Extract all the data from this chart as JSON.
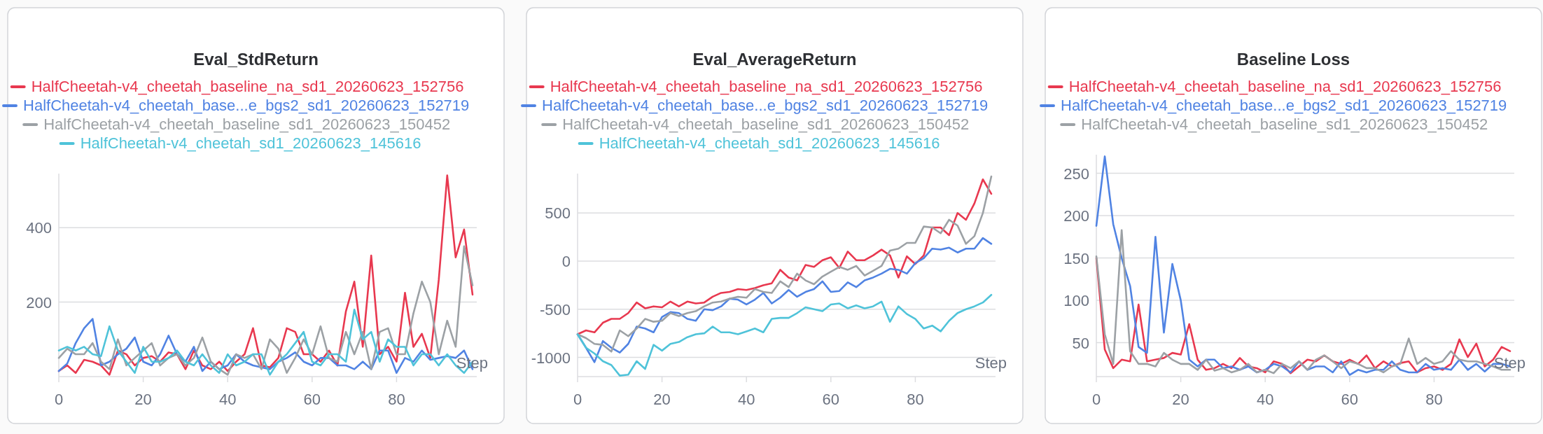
{
  "chart_data": [
    {
      "type": "line",
      "title": "Eval_StdReturn",
      "xlabel": "Step",
      "legend": "top",
      "grid": "y",
      "xlim": [
        0,
        99
      ],
      "xticks": [
        0,
        20,
        40,
        60,
        80
      ],
      "ylim": [
        0,
        545
      ],
      "yticks": [
        200,
        400
      ],
      "x": [
        0,
        2,
        4,
        6,
        8,
        10,
        12,
        14,
        16,
        18,
        20,
        22,
        24,
        26,
        28,
        30,
        32,
        34,
        36,
        38,
        40,
        42,
        44,
        46,
        48,
        50,
        52,
        54,
        56,
        58,
        60,
        62,
        64,
        66,
        68,
        70,
        72,
        74,
        76,
        78,
        80,
        82,
        84,
        86,
        88,
        90,
        92,
        94,
        96,
        98
      ],
      "series": [
        {
          "name": "HalfCheetah-v4_cheetah_baseline_na_sd1_20260623_152756",
          "color": "#e8384f",
          "values": [
            15,
            30,
            10,
            45,
            40,
            30,
            5,
            70,
            60,
            30,
            50,
            55,
            40,
            65,
            60,
            20,
            70,
            30,
            20,
            40,
            15,
            40,
            60,
            130,
            30,
            25,
            50,
            130,
            120,
            60,
            60,
            40,
            70,
            30,
            175,
            255,
            80,
            325,
            60,
            80,
            40,
            225,
            80,
            115,
            50,
            260,
            540,
            320,
            395,
            220
          ]
        },
        {
          "name": "HalfCheetah-v4_cheetah_base...e_bgs2_sd1_20260623_152719",
          "color": "#5083e3",
          "values": [
            15,
            35,
            90,
            130,
            155,
            30,
            40,
            60,
            75,
            105,
            40,
            30,
            60,
            110,
            60,
            40,
            80,
            15,
            40,
            20,
            30,
            60,
            40,
            30,
            25,
            20,
            40,
            50,
            65,
            40,
            30,
            50,
            50,
            30,
            30,
            20,
            40,
            20,
            70,
            70,
            10,
            50,
            40,
            70,
            45,
            50,
            55,
            50,
            70,
            20
          ]
        },
        {
          "name": "HalfCheetah-v4_cheetah_baseline_sd1_20260623_150452",
          "color": "#9ca1a5",
          "values": [
            50,
            75,
            60,
            60,
            90,
            40,
            20,
            100,
            30,
            50,
            70,
            90,
            30,
            50,
            60,
            30,
            50,
            105,
            40,
            20,
            5,
            60,
            50,
            60,
            20,
            100,
            75,
            10,
            50,
            100,
            60,
            135,
            50,
            40,
            120,
            60,
            120,
            20,
            120,
            130,
            60,
            60,
            170,
            255,
            200,
            60,
            150,
            80,
            350,
            245
          ]
        },
        {
          "name": "HalfCheetah-v4_cheetah_sd1_20260623_145616",
          "color": "#4fc3d9",
          "values": [
            70,
            80,
            70,
            80,
            60,
            55,
            135,
            70,
            40,
            10,
            80,
            40,
            40,
            50,
            70,
            40,
            30,
            60,
            30,
            10,
            60,
            30,
            40,
            60,
            60,
            5,
            40,
            60,
            90,
            120,
            40,
            30,
            60,
            60,
            40,
            180,
            100,
            120,
            40,
            100,
            80,
            80,
            30,
            60,
            60,
            30,
            60,
            30,
            10,
            40
          ]
        }
      ]
    },
    {
      "type": "line",
      "title": "Eval_AverageReturn",
      "xlabel": "Step",
      "legend": "top",
      "grid": "y",
      "xlim": [
        0,
        99
      ],
      "xticks": [
        0,
        20,
        40,
        60,
        80
      ],
      "ylim": [
        -1200,
        910
      ],
      "yticks": [
        -1000,
        -500,
        0,
        500
      ],
      "x": [
        0,
        2,
        4,
        6,
        8,
        10,
        12,
        14,
        16,
        18,
        20,
        22,
        24,
        26,
        28,
        30,
        32,
        34,
        36,
        38,
        40,
        42,
        44,
        46,
        48,
        50,
        52,
        54,
        56,
        58,
        60,
        62,
        64,
        66,
        68,
        70,
        72,
        74,
        76,
        78,
        80,
        82,
        84,
        86,
        88,
        90,
        92,
        94,
        96,
        98
      ],
      "series": [
        {
          "name": "HalfCheetah-v4_cheetah_baseline_na_sd1_20260623_152756",
          "color": "#e8384f",
          "values": [
            -760,
            -720,
            -740,
            -640,
            -600,
            -600,
            -540,
            -430,
            -490,
            -470,
            -480,
            -420,
            -470,
            -420,
            -440,
            -430,
            -370,
            -330,
            -320,
            -290,
            -300,
            -280,
            -250,
            -230,
            -90,
            -170,
            -200,
            -40,
            -60,
            10,
            40,
            -70,
            100,
            10,
            10,
            60,
            120,
            60,
            -170,
            50,
            -30,
            60,
            350,
            350,
            270,
            500,
            430,
            600,
            850,
            700
          ]
        },
        {
          "name": "HalfCheetah-v4_cheetah_base...e_bgs2_sd1_20260623_152719",
          "color": "#5083e3",
          "values": [
            -760,
            -900,
            -1050,
            -830,
            -900,
            -950,
            -860,
            -680,
            -700,
            -740,
            -580,
            -530,
            -540,
            -600,
            -620,
            -500,
            -510,
            -470,
            -390,
            -400,
            -450,
            -400,
            -330,
            -440,
            -380,
            -300,
            -370,
            -320,
            -290,
            -210,
            -320,
            -310,
            -220,
            -270,
            -200,
            -170,
            -130,
            -80,
            -90,
            -130,
            -20,
            30,
            130,
            120,
            140,
            90,
            130,
            130,
            240,
            180
          ]
        },
        {
          "name": "HalfCheetah-v4_cheetah_baseline_sd1_20260623_150452",
          "color": "#9ca1a5",
          "values": [
            -760,
            -800,
            -860,
            -870,
            -940,
            -720,
            -780,
            -700,
            -600,
            -630,
            -620,
            -540,
            -570,
            -540,
            -520,
            -470,
            -430,
            -420,
            -390,
            -370,
            -380,
            -290,
            -320,
            -330,
            -210,
            -270,
            -130,
            -200,
            -240,
            -160,
            -110,
            -60,
            -90,
            -50,
            -150,
            -100,
            -50,
            110,
            130,
            190,
            190,
            360,
            350,
            290,
            430,
            370,
            180,
            260,
            500,
            880
          ]
        },
        {
          "name": "HalfCheetah-v4_cheetah_sd1_20260623_145616",
          "color": "#4fc3d9",
          "values": [
            -760,
            -900,
            -960,
            -1040,
            -1080,
            -1190,
            -1180,
            -1040,
            -1120,
            -870,
            -930,
            -860,
            -840,
            -790,
            -760,
            -750,
            -680,
            -740,
            -740,
            -760,
            -730,
            -700,
            -740,
            -600,
            -590,
            -590,
            -540,
            -480,
            -500,
            -520,
            -450,
            -440,
            -490,
            -460,
            -490,
            -470,
            -420,
            -630,
            -470,
            -550,
            -600,
            -700,
            -670,
            -730,
            -620,
            -540,
            -500,
            -470,
            -430,
            -350
          ]
        }
      ]
    },
    {
      "type": "line",
      "title": "Baseline Loss",
      "xlabel": "Step",
      "legend": "top",
      "grid": "y",
      "xlim": [
        0,
        99
      ],
      "xticks": [
        0,
        20,
        40,
        60,
        80
      ],
      "ylim": [
        10,
        272
      ],
      "yticks": [
        50,
        100,
        150,
        200,
        250
      ],
      "x": [
        0,
        2,
        4,
        6,
        8,
        10,
        12,
        14,
        16,
        18,
        20,
        22,
        24,
        26,
        28,
        30,
        32,
        34,
        36,
        38,
        40,
        42,
        44,
        46,
        48,
        50,
        52,
        54,
        56,
        58,
        60,
        62,
        64,
        66,
        68,
        70,
        72,
        74,
        76,
        78,
        80,
        82,
        84,
        86,
        88,
        90,
        92,
        94,
        96,
        98
      ],
      "series": [
        {
          "name": "HalfCheetah-v4_cheetah_baseline_na_sd1_20260623_152756",
          "color": "#e8384f",
          "values": [
            150,
            42,
            20,
            30,
            28,
            95,
            28,
            30,
            32,
            38,
            36,
            72,
            30,
            18,
            20,
            25,
            20,
            32,
            22,
            20,
            15,
            28,
            25,
            14,
            22,
            30,
            28,
            35,
            28,
            25,
            30,
            25,
            35,
            20,
            28,
            22,
            26,
            28,
            15,
            20,
            22,
            18,
            25,
            54,
            33,
            49,
            22,
            30,
            45,
            40
          ]
        },
        {
          "name": "HalfCheetah-v4_cheetah_base...e_bgs2_sd1_20260623_152719",
          "color": "#5083e3",
          "values": [
            188,
            270,
            190,
            150,
            117,
            45,
            38,
            175,
            62,
            143,
            100,
            30,
            22,
            30,
            30,
            20,
            22,
            18,
            22,
            15,
            18,
            25,
            22,
            15,
            28,
            18,
            22,
            22,
            15,
            28,
            12,
            18,
            15,
            18,
            18,
            28,
            18,
            15,
            15,
            25,
            18,
            20,
            18,
            30,
            18,
            25,
            16,
            25,
            25,
            22
          ]
        },
        {
          "name": "HalfCheetah-v4_cheetah_baseline_sd1_20260623_150452",
          "color": "#9ca1a5",
          "values": [
            152,
            60,
            25,
            183,
            40,
            25,
            25,
            22,
            38,
            30,
            25,
            25,
            18,
            30,
            17,
            20,
            15,
            18,
            25,
            15,
            18,
            14,
            25,
            20,
            28,
            18,
            30,
            35,
            28,
            20,
            28,
            25,
            20,
            20,
            15,
            22,
            25,
            55,
            25,
            32,
            25,
            28,
            40,
            30,
            28,
            28,
            25,
            22,
            18,
            18
          ]
        }
      ]
    }
  ]
}
